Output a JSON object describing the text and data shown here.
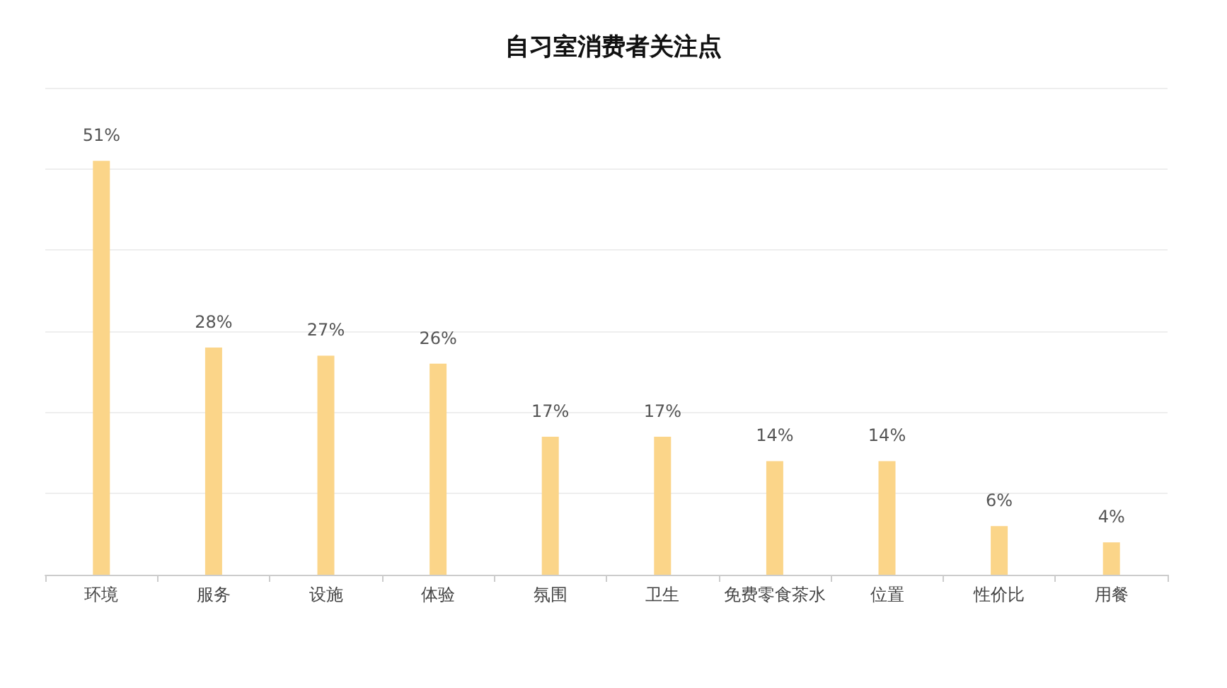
{
  "chart_data": {
    "type": "bar",
    "title": "自习室消费者关注点",
    "categories": [
      "环境",
      "服务",
      "设施",
      "体验",
      "氛围",
      "卫生",
      "免费零食茶水",
      "位置",
      "性价比",
      "用餐"
    ],
    "values": [
      51,
      28,
      27,
      26,
      17,
      17,
      14,
      14,
      6,
      4
    ],
    "value_labels": [
      "51%",
      "28%",
      "27%",
      "26%",
      "17%",
      "17%",
      "14%",
      "14%",
      "6%",
      "4%"
    ],
    "color": "#fbd589",
    "ylim": [
      0,
      60
    ],
    "yticks": [
      {
        "value": 0,
        "label": null
      },
      {
        "value": 10,
        "label": null
      },
      {
        "value": 20,
        "label": null
      },
      {
        "value": 30,
        "label": null
      },
      {
        "value": 40,
        "label": null
      },
      {
        "value": 50,
        "label": null
      },
      {
        "value": 60,
        "label": null
      }
    ],
    "grid": "y",
    "tick_labels": "x"
  }
}
